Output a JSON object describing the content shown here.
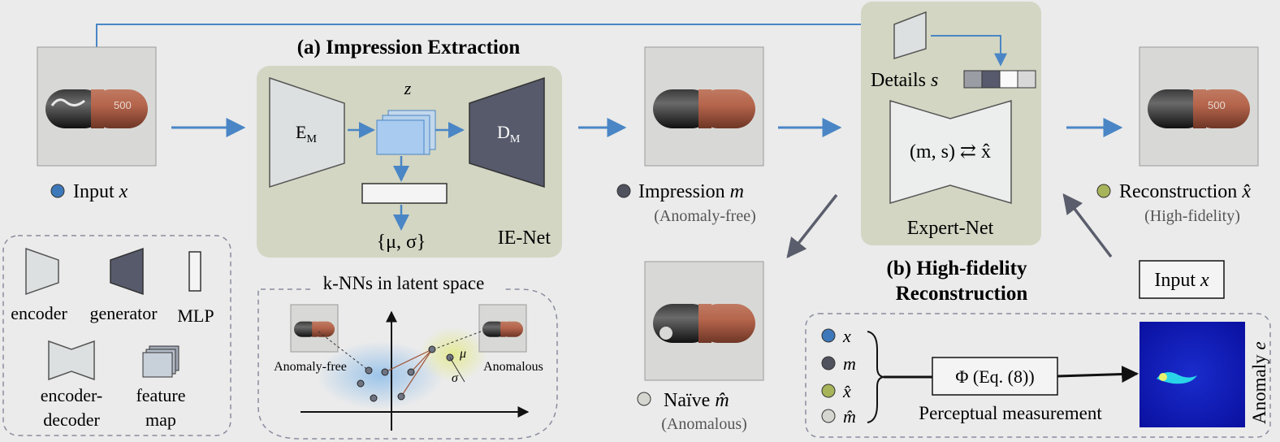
{
  "panels": {
    "a_title": "(a) Impression Extraction",
    "b_title_line1": "(b) High-fidelity",
    "b_title_line2": "Reconstruction",
    "ie_net": "IE-Net",
    "expert_net": "Expert-Net"
  },
  "ie_net_blocks": {
    "encoder_label": "E",
    "encoder_sub": "M",
    "generator_label": "D",
    "generator_sub": "M",
    "z_label": "z",
    "mu_sigma": "{μ, σ}"
  },
  "images": {
    "input_label": "Input",
    "input_var": "x",
    "impression_label": "Impression",
    "impression_var": "m",
    "impression_note": "(Anomaly-free)",
    "naive_label": "Naïve",
    "naive_var": "m̂",
    "naive_note": "(Anomalous)",
    "recon_label": "Reconstruction",
    "recon_var": "x̂",
    "recon_note": "(High-fidelity)",
    "pill_text": "500"
  },
  "expert": {
    "details_label": "Details",
    "details_var": "s",
    "formula": "(m, s) ⇄ x̂"
  },
  "input_box": {
    "label": "Input",
    "var": "x"
  },
  "legend": {
    "encoder": "encoder",
    "generator": "generator",
    "mlp": "MLP",
    "encoder_decoder_line1": "encoder-",
    "encoder_decoder_line2": "decoder",
    "feature_map_line1": "feature",
    "feature_map_line2": "map"
  },
  "knn": {
    "title": "k-NNs in latent space",
    "anomaly_free": "Anomaly-free",
    "anomalous": "Anomalous",
    "mu": "μ",
    "sigma": "σ"
  },
  "perceptual": {
    "items": [
      "x",
      "m",
      "x̂",
      "m̂"
    ],
    "phi": "Φ (Eq. (8))",
    "measurement": "Perceptual measurement",
    "anomaly_label": "Anomaly",
    "anomaly_var": "e"
  },
  "colors": {
    "arrow_blue": "#4a86c5",
    "panel_green": "#d3d6c3",
    "generator_dark": "#565a6b",
    "dot_input": "#3d79ba",
    "dot_impression": "#50525e",
    "dot_recon": "#a8b45a",
    "dot_naive": "#d5d6cf"
  }
}
